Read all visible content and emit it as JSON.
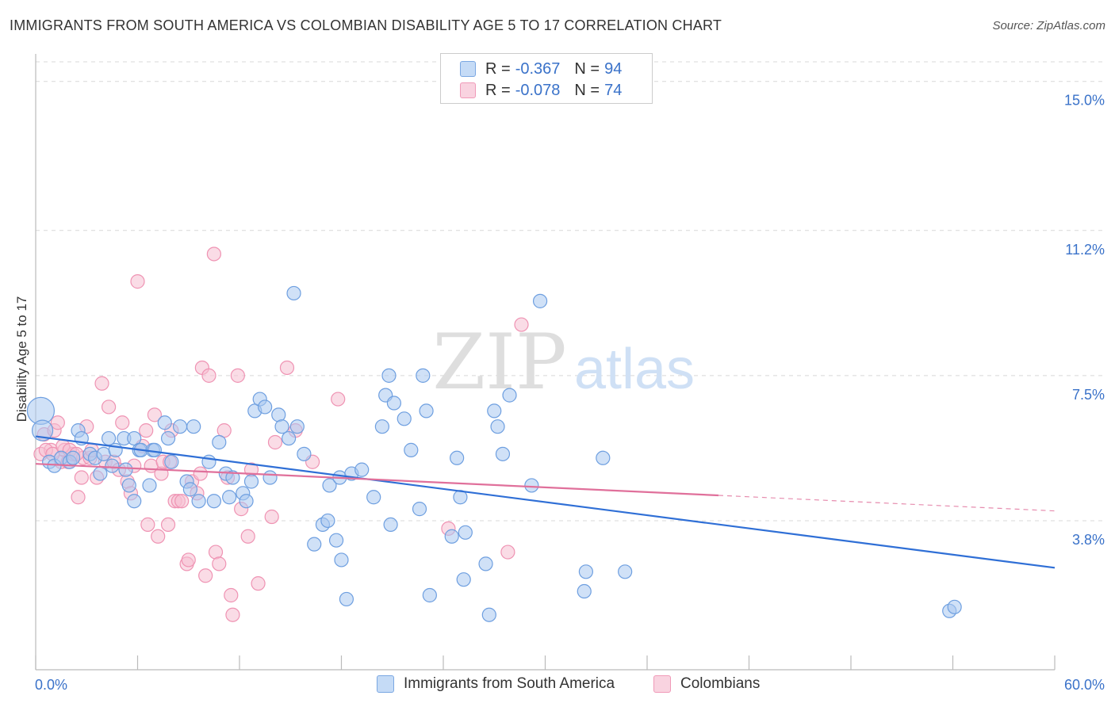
{
  "title": "IMMIGRANTS FROM SOUTH AMERICA VS COLOMBIAN DISABILITY AGE 5 TO 17 CORRELATION CHART",
  "source": "Source: ZipAtlas.com",
  "watermark": {
    "zip": "ZIP",
    "atlas": "atlas"
  },
  "legend_top": [
    {
      "r_label": "R =",
      "r_value": "-0.367",
      "n_label": "N =",
      "n_value": "94"
    },
    {
      "r_label": "R =",
      "r_value": "-0.078",
      "n_label": "N =",
      "n_value": "74"
    }
  ],
  "colors": {
    "blue_fill": "#a9c8f0",
    "blue_stroke": "#6e9fe0",
    "blue_line": "#2f6fd6",
    "pink_fill": "#f6bfd1",
    "pink_stroke": "#ef93b3",
    "pink_line": "#e0709b",
    "axis_text": "#3a72c9",
    "grid": "#d8d8d8"
  },
  "chart_data": {
    "type": "scatter",
    "title": "IMMIGRANTS FROM SOUTH AMERICA VS COLOMBIAN DISABILITY AGE 5 TO 17 CORRELATION CHART",
    "xlabel": "",
    "ylabel": "Disability Age 5 to 17",
    "xlim": [
      0,
      60
    ],
    "ylim": [
      0,
      15.5
    ],
    "x_tick_labels": [
      "0.0%",
      "60.0%"
    ],
    "y_ticks": [
      3.8,
      7.5,
      11.2,
      15.0
    ],
    "y_tick_labels": [
      "3.8%",
      "7.5%",
      "11.2%",
      "15.0%"
    ],
    "grid": true,
    "legend_position": "bottom",
    "series": [
      {
        "name": "Immigrants from South America",
        "r": -0.367,
        "n": 94,
        "trend": {
          "x": [
            0,
            60
          ],
          "y": [
            5.95,
            2.6
          ],
          "solid_to": 60
        },
        "points": [
          [
            0.3,
            6.6
          ],
          [
            0.4,
            6.1
          ],
          [
            0.8,
            5.3
          ],
          [
            1.1,
            5.2
          ],
          [
            1.5,
            5.4
          ],
          [
            2.0,
            5.3
          ],
          [
            2.2,
            5.4
          ],
          [
            2.5,
            6.1
          ],
          [
            2.7,
            5.9
          ],
          [
            3.2,
            5.5
          ],
          [
            3.5,
            5.4
          ],
          [
            3.8,
            5.0
          ],
          [
            4.0,
            5.5
          ],
          [
            4.3,
            5.9
          ],
          [
            4.5,
            5.2
          ],
          [
            4.7,
            5.6
          ],
          [
            5.2,
            5.9
          ],
          [
            5.3,
            5.1
          ],
          [
            5.5,
            4.7
          ],
          [
            5.8,
            4.3
          ],
          [
            5.8,
            5.9
          ],
          [
            6.1,
            5.6
          ],
          [
            6.2,
            5.6
          ],
          [
            6.7,
            4.7
          ],
          [
            6.9,
            5.6
          ],
          [
            7.0,
            5.6
          ],
          [
            7.6,
            6.3
          ],
          [
            7.8,
            5.9
          ],
          [
            8.0,
            5.3
          ],
          [
            8.5,
            6.2
          ],
          [
            8.9,
            4.8
          ],
          [
            9.1,
            4.6
          ],
          [
            9.3,
            6.2
          ],
          [
            9.6,
            4.3
          ],
          [
            10.2,
            5.3
          ],
          [
            10.5,
            4.3
          ],
          [
            10.8,
            5.8
          ],
          [
            11.2,
            5.0
          ],
          [
            11.4,
            4.4
          ],
          [
            11.6,
            4.9
          ],
          [
            12.2,
            4.5
          ],
          [
            12.4,
            4.3
          ],
          [
            12.7,
            4.8
          ],
          [
            12.9,
            6.6
          ],
          [
            13.2,
            6.9
          ],
          [
            13.5,
            6.7
          ],
          [
            13.8,
            4.9
          ],
          [
            14.3,
            6.5
          ],
          [
            14.5,
            6.2
          ],
          [
            14.9,
            5.9
          ],
          [
            15.2,
            9.6
          ],
          [
            15.4,
            6.2
          ],
          [
            15.8,
            5.5
          ],
          [
            16.4,
            3.2
          ],
          [
            16.9,
            3.7
          ],
          [
            17.2,
            3.8
          ],
          [
            17.3,
            4.7
          ],
          [
            17.7,
            3.3
          ],
          [
            17.9,
            4.9
          ],
          [
            18.0,
            2.8
          ],
          [
            18.3,
            1.8
          ],
          [
            18.6,
            5.0
          ],
          [
            19.2,
            5.1
          ],
          [
            19.9,
            4.4
          ],
          [
            20.4,
            6.2
          ],
          [
            20.6,
            7.0
          ],
          [
            20.8,
            7.5
          ],
          [
            20.9,
            3.7
          ],
          [
            21.1,
            6.8
          ],
          [
            21.7,
            6.4
          ],
          [
            22.1,
            5.6
          ],
          [
            22.6,
            4.1
          ],
          [
            22.8,
            7.5
          ],
          [
            23.0,
            6.6
          ],
          [
            23.2,
            1.9
          ],
          [
            24.5,
            3.4
          ],
          [
            24.8,
            5.4
          ],
          [
            25.0,
            4.4
          ],
          [
            25.2,
            2.3
          ],
          [
            25.3,
            3.5
          ],
          [
            26.5,
            2.7
          ],
          [
            26.7,
            1.4
          ],
          [
            27.0,
            6.6
          ],
          [
            27.2,
            6.2
          ],
          [
            27.5,
            5.5
          ],
          [
            27.9,
            7.0
          ],
          [
            29.7,
            9.4
          ],
          [
            29.2,
            4.7
          ],
          [
            32.3,
            2.0
          ],
          [
            32.4,
            2.5
          ],
          [
            33.4,
            5.4
          ],
          [
            34.7,
            2.5
          ],
          [
            53.8,
            1.5
          ],
          [
            54.1,
            1.6
          ]
        ]
      },
      {
        "name": "Colombians",
        "r": -0.078,
        "n": 74,
        "trend": {
          "x": [
            0,
            60
          ],
          "y": [
            5.25,
            4.05
          ],
          "solid_to": 40.2
        },
        "points": [
          [
            0.3,
            5.5
          ],
          [
            0.5,
            6.0
          ],
          [
            0.9,
            5.6
          ],
          [
            1.1,
            6.1
          ],
          [
            1.3,
            6.3
          ],
          [
            1.5,
            5.3
          ],
          [
            1.7,
            5.6
          ],
          [
            1.9,
            5.3
          ],
          [
            2.2,
            5.5
          ],
          [
            2.5,
            4.4
          ],
          [
            2.7,
            4.9
          ],
          [
            2.8,
            5.4
          ],
          [
            3.0,
            6.2
          ],
          [
            3.2,
            5.4
          ],
          [
            3.6,
            4.9
          ],
          [
            3.9,
            7.3
          ],
          [
            4.1,
            5.3
          ],
          [
            4.3,
            6.7
          ],
          [
            4.6,
            5.3
          ],
          [
            4.9,
            5.1
          ],
          [
            5.1,
            6.3
          ],
          [
            5.4,
            4.8
          ],
          [
            5.6,
            4.5
          ],
          [
            5.8,
            5.2
          ],
          [
            6.0,
            9.9
          ],
          [
            6.3,
            5.7
          ],
          [
            6.5,
            6.1
          ],
          [
            6.6,
            3.7
          ],
          [
            6.8,
            5.2
          ],
          [
            7.0,
            6.5
          ],
          [
            7.2,
            3.4
          ],
          [
            7.4,
            5.0
          ],
          [
            7.5,
            5.3
          ],
          [
            7.8,
            3.7
          ],
          [
            7.9,
            5.3
          ],
          [
            8.0,
            6.1
          ],
          [
            8.2,
            4.3
          ],
          [
            8.4,
            4.3
          ],
          [
            8.6,
            4.3
          ],
          [
            8.9,
            2.7
          ],
          [
            9.0,
            2.8
          ],
          [
            9.2,
            4.8
          ],
          [
            9.5,
            4.5
          ],
          [
            9.7,
            5.0
          ],
          [
            9.8,
            7.7
          ],
          [
            10.0,
            2.4
          ],
          [
            10.2,
            7.5
          ],
          [
            10.5,
            10.6
          ],
          [
            10.6,
            3.0
          ],
          [
            10.8,
            2.7
          ],
          [
            11.1,
            6.1
          ],
          [
            11.3,
            4.9
          ],
          [
            11.5,
            1.9
          ],
          [
            11.6,
            1.4
          ],
          [
            11.9,
            7.5
          ],
          [
            12.1,
            4.1
          ],
          [
            12.5,
            3.4
          ],
          [
            12.7,
            5.1
          ],
          [
            13.1,
            2.2
          ],
          [
            13.9,
            3.9
          ],
          [
            14.1,
            5.8
          ],
          [
            14.8,
            7.7
          ],
          [
            15.3,
            6.1
          ],
          [
            16.3,
            5.3
          ],
          [
            17.8,
            6.9
          ],
          [
            24.3,
            3.6
          ],
          [
            27.8,
            3.0
          ],
          [
            28.6,
            8.8
          ],
          [
            0.6,
            5.6
          ],
          [
            1.0,
            5.5
          ],
          [
            1.6,
            5.7
          ],
          [
            2.0,
            5.6
          ],
          [
            2.4,
            5.5
          ],
          [
            3.3,
            5.6
          ]
        ]
      }
    ]
  }
}
